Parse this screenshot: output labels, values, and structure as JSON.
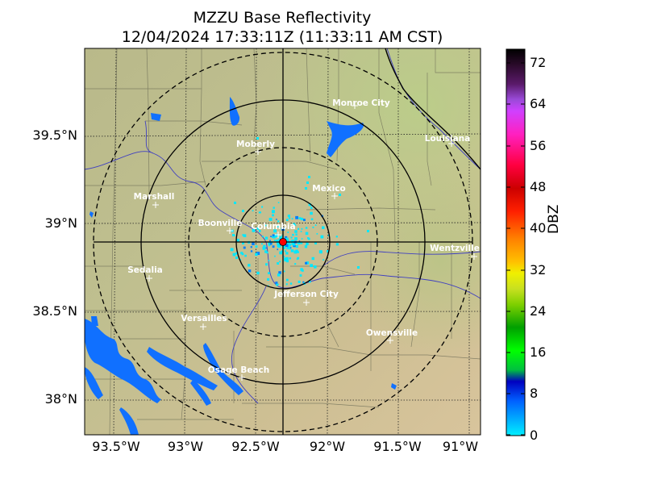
{
  "title": {
    "line1": "MZZU Base Reflectivity",
    "line2": "12/04/2024 17:33:11Z (11:33:11 AM CST)"
  },
  "axes": {
    "lat_labels": [
      "39.5°N",
      "39°N",
      "38.5°N",
      "38°N"
    ],
    "lon_labels": [
      "93.5°W",
      "93°W",
      "92.5°W",
      "92°W",
      "91.5°W",
      "91°W"
    ]
  },
  "colorbar": {
    "label": "DBZ",
    "ticks": [
      "72",
      "64",
      "56",
      "48",
      "40",
      "32",
      "24",
      "16",
      "8",
      "0"
    ],
    "colors": [
      "#000000",
      "#2a0a2a",
      "#5a1a6a",
      "#9a4ad8",
      "#d040ff",
      "#ff20c0",
      "#ff0040",
      "#cc0000",
      "#ff6000",
      "#ffb000",
      "#f0f000",
      "#c8e020",
      "#60c000",
      "#00a000",
      "#00ff00",
      "#0000c0",
      "#1060ff",
      "#00f0ff"
    ]
  },
  "radar": {
    "site_color": "#ff0000",
    "echo_colors": [
      "#00e8ff",
      "#0080ff",
      "#0050e0"
    ]
  },
  "cities": [
    {
      "name": "Monroe City"
    },
    {
      "name": "Moberly"
    },
    {
      "name": "Louisiana"
    },
    {
      "name": "Mexico"
    },
    {
      "name": "Marshall"
    },
    {
      "name": "Boonville"
    },
    {
      "name": "Columbia"
    },
    {
      "name": "Wentzville"
    },
    {
      "name": "Sedalia"
    },
    {
      "name": "Jefferson City"
    },
    {
      "name": "Versailles"
    },
    {
      "name": "Owensville"
    },
    {
      "name": "Osage Beach"
    }
  ]
}
